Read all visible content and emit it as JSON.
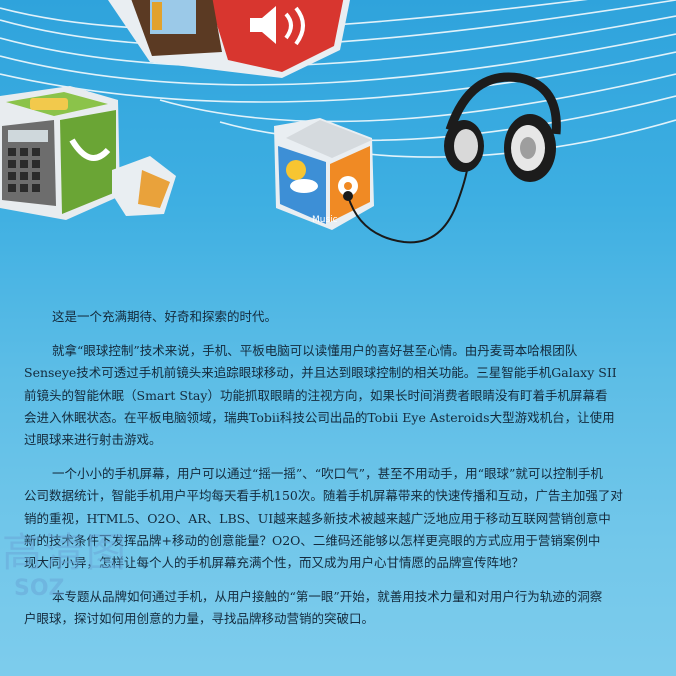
{
  "illustration": {
    "music_label": "Music",
    "icons": [
      "calculator-icon",
      "photo-frame-icon",
      "speaker-icon",
      "weather-icon",
      "music-icon",
      "headphones-icon"
    ]
  },
  "article": {
    "p1": [
      "这是一个充满期待、好奇和探索的时代。"
    ],
    "p2": [
      "就拿“眼球控制”技术来说，手机、平板电脑可以读懂用户的喜好甚至心情。由丹麦哥本哈根团队",
      "Senseye技术可透过手机前镜头来追踪眼球移动，并且达到眼球控制的相关功能。三星智能手机Galaxy SII",
      "前镜头的智能休眠（Smart Stay）功能抓取眼睛的注视方向，如果长时间消费者眼睛没有盯着手机屏幕看",
      "会进入休眠状态。在平板电脑领域，瑞典Tobii科技公司出品的Tobii Eye Asteroids大型游戏机台，让使用",
      "过眼球来进行射击游戏。"
    ],
    "p3": [
      "一个小小的手机屏幕，用户可以通过“摇一摇”、“吹口气”，甚至不用动手，用“眼球”就可以控制手机",
      "公司数据统计，智能手机用户平均每天看手机150次。随着手机屏幕带来的快速传播和互动，广告主加强了对",
      "销的重视，HTML5、O2O、AR、LBS、UI越来越多新技术被越来越广泛地应用于移动互联网营销创意中",
      "新的技术条件下发挥品牌+移动的创意能量？O2O、二维码还能够以怎样更亮眼的方式应用于营销案例中",
      "现大同小异，怎样让每个人的手机屏幕充满个性，而又成为用户心甘情愿的品牌宣传阵地？"
    ],
    "p4": [
      "本专题从品牌如何通过手机，从用户接触的“第一眼”开始，就善用技术力量和对用户行为轨迹的洞察",
      "户眼球，探讨如何用创意的力量，寻找品牌移动营销的突破口。"
    ]
  },
  "watermark": {
    "main": "高清图",
    "sub": "SOZ"
  }
}
